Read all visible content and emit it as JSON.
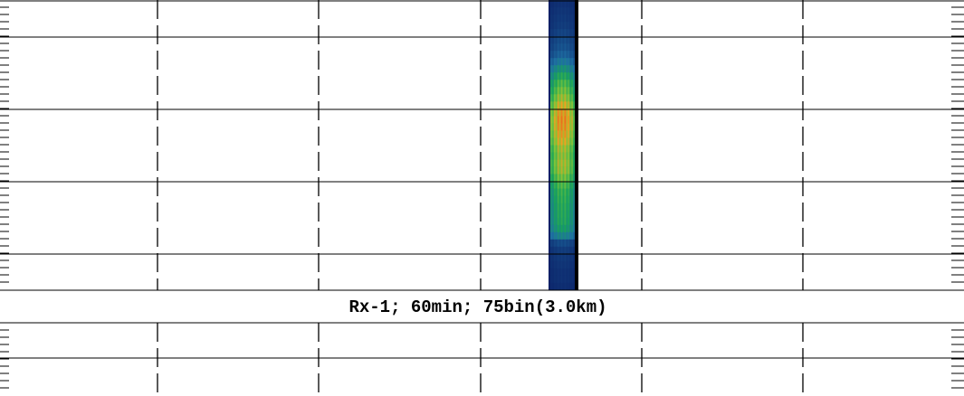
{
  "chart_data": {
    "type": "heatmap",
    "title": "Rx-1; 60min; 75bin(3.0km)",
    "xlabel": "",
    "ylabel": "",
    "grid": true,
    "colormap": [
      "#0b1f66",
      "#1e6fa3",
      "#18a35a",
      "#7cc53a",
      "#f0a020",
      "#e8501a"
    ],
    "background_color": "#0b1f66",
    "signal": {
      "start_fraction": 0.569,
      "end_fraction": 0.6,
      "rows": [
        0.05,
        0.06,
        0.07,
        0.08,
        0.1,
        0.12,
        0.14,
        0.18,
        0.25,
        0.35,
        0.45,
        0.55,
        0.62,
        0.7,
        0.8,
        0.88,
        0.92,
        0.9,
        0.85,
        0.8,
        0.72,
        0.68,
        0.72,
        0.7,
        0.62,
        0.55,
        0.5,
        0.48,
        0.46,
        0.45,
        0.44,
        0.4,
        0.3,
        0.12,
        0.08,
        0.07,
        0.06,
        0.05,
        0.05,
        0.04
      ]
    }
  }
}
